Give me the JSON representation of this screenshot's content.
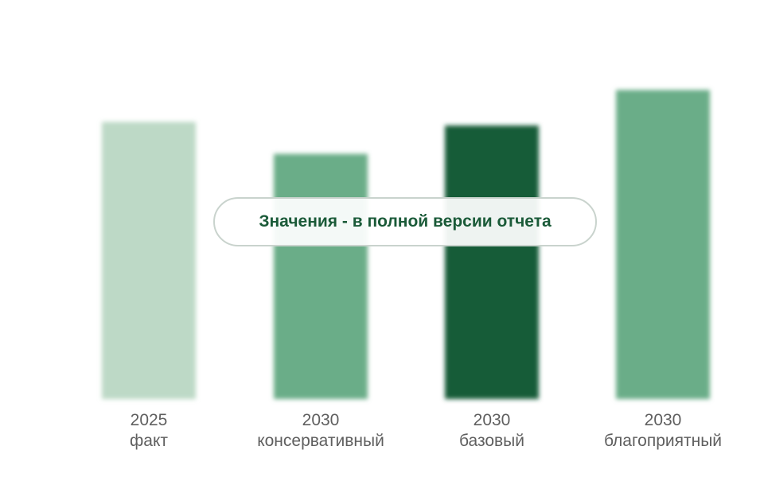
{
  "chart_data": {
    "type": "bar",
    "categories": [
      {
        "year": "2025",
        "label": "факт"
      },
      {
        "year": "2030",
        "label": "консервативный"
      },
      {
        "year": "2030",
        "label": "базовый"
      },
      {
        "year": "2030",
        "label": "благоприятный"
      }
    ],
    "values": [
      78,
      69,
      77,
      87
    ],
    "ylim": [
      0,
      100
    ],
    "grid": true,
    "colors": [
      "#bdd9c6",
      "#6bad88",
      "#165c38",
      "#6bad88"
    ]
  },
  "overlay": {
    "text": "Значения - в полной версии отчета"
  }
}
